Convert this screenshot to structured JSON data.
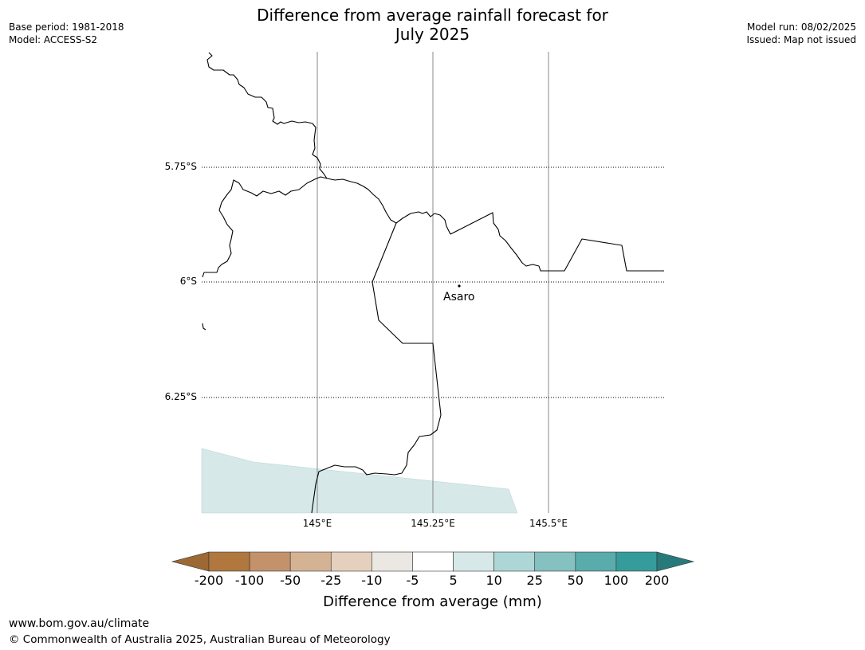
{
  "title_line1": "Difference from average rainfall forecast for",
  "title_line2": "July 2025",
  "base_period": "Base period: 1981-2018",
  "model": "Model: ACCESS-S2",
  "model_run": "Model run: 08/02/2025",
  "issued": "Issued: Map not issued",
  "lat_labels": [
    "5.75°S",
    "6°S",
    "6.25°S"
  ],
  "lon_labels": [
    "145°E",
    "145.25°E",
    "145.5°E"
  ],
  "place": {
    "name": "Asaro"
  },
  "colorbar": {
    "title": "Difference from average (mm)",
    "ticks": [
      "-200",
      "-100",
      "-50",
      "-25",
      "-10",
      "-5",
      "5",
      "10",
      "25",
      "50",
      "100",
      "200"
    ],
    "colors": [
      "#9c6834",
      "#b0783f",
      "#c4926a",
      "#d4b395",
      "#e5d0bd",
      "#ebe8e4",
      "#ffffff",
      "#d6e8e8",
      "#add6d6",
      "#84c1c0",
      "#5aabab",
      "#359b9b",
      "#287a7a"
    ]
  },
  "footer": {
    "url": "www.bom.gov.au/climate",
    "copyright": "© Commonwealth of Australia 2025, Australian Bureau of Meteorology"
  }
}
